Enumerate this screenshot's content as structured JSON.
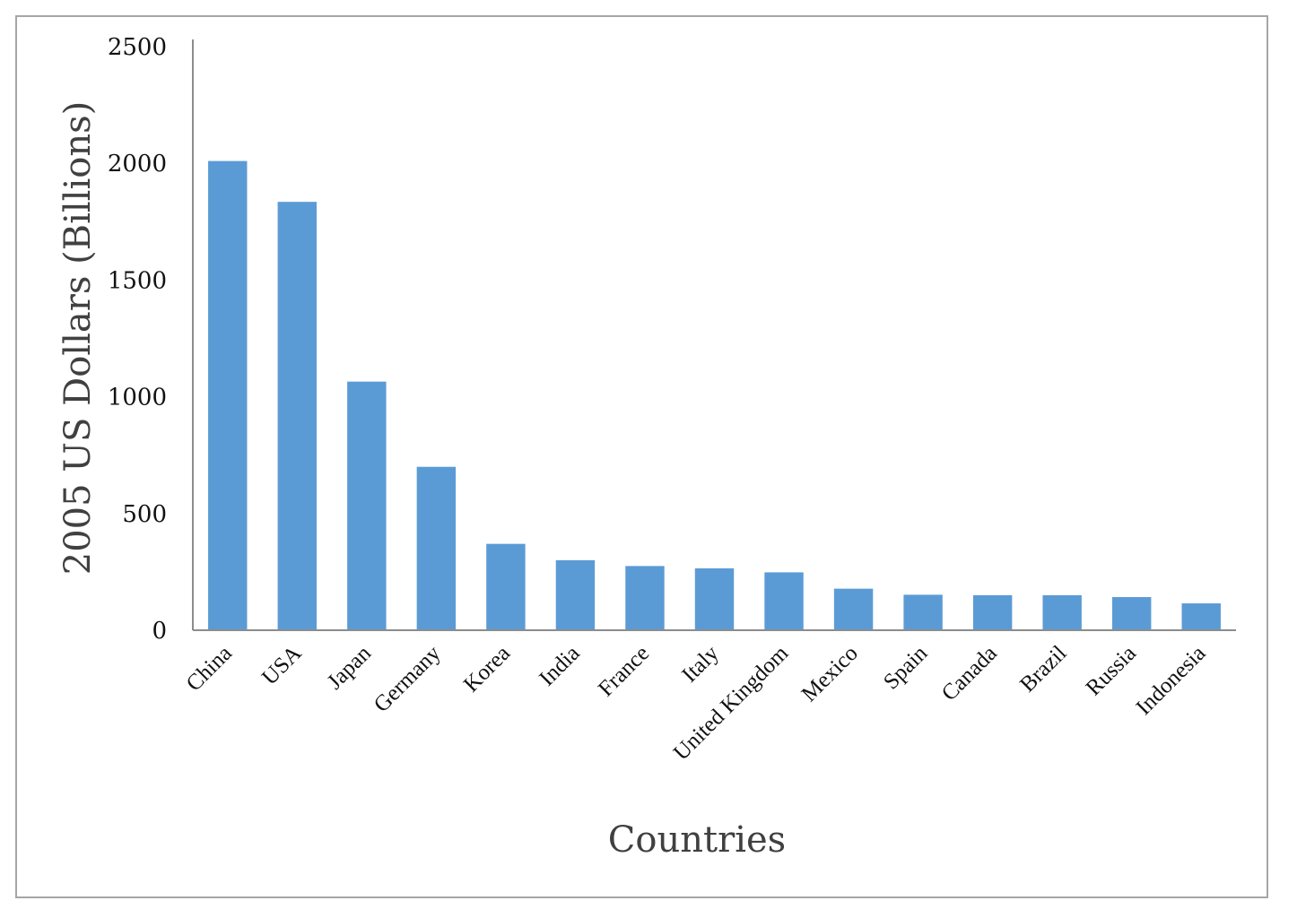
{
  "chart_data": {
    "type": "bar",
    "title": "",
    "xlabel": "Countries",
    "ylabel": "2005 US Dollars (Billions)",
    "categories": [
      "China",
      "USA",
      "Japan",
      "Germany",
      "Korea",
      "India",
      "France",
      "Italy",
      "United Kingdom",
      "Mexico",
      "Spain",
      "Canada",
      "Brazil",
      "Russia",
      "Indonesia"
    ],
    "values": [
      2010,
      1835,
      1065,
      700,
      370,
      300,
      275,
      265,
      248,
      178,
      152,
      150,
      150,
      142,
      115
    ],
    "ylim": [
      0,
      2500
    ],
    "yticks": [
      "0",
      "500",
      "1000",
      "1500",
      "2000",
      "2500"
    ],
    "ytick_values": [
      0,
      500,
      1000,
      1500,
      2000,
      2500
    ],
    "grid": false,
    "legend": "none",
    "bar_color": "#5b9bd5",
    "axis_color": "#8c8c8c"
  }
}
